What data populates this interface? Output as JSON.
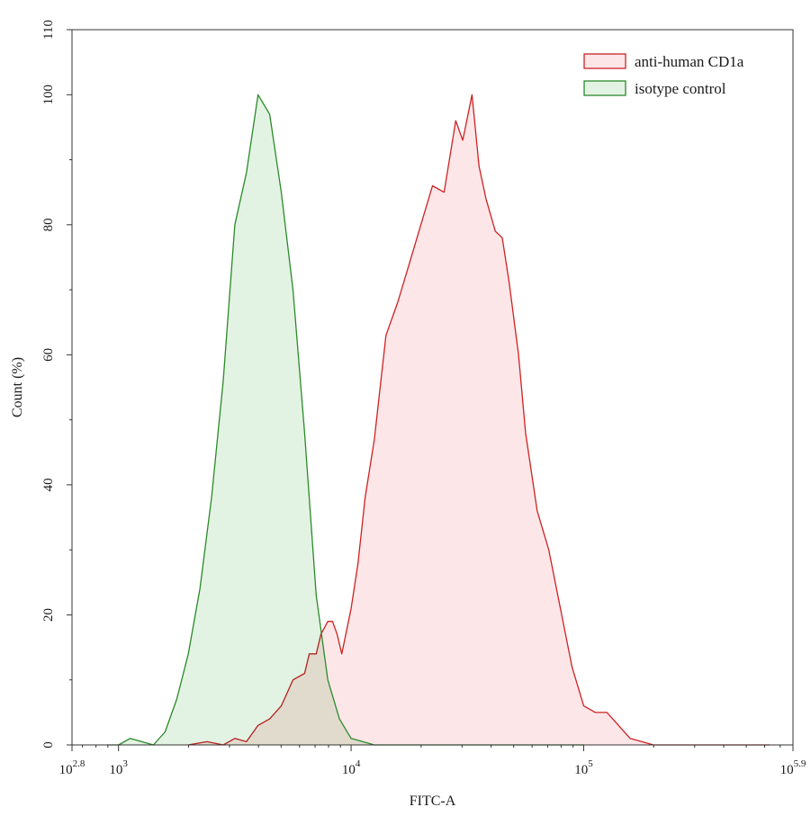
{
  "chart_data": {
    "type": "area",
    "xlabel": "FITC-A",
    "ylabel": "Count  (%)",
    "x_scale": "log10",
    "xlim": [
      2.8,
      5.9
    ],
    "ylim": [
      0,
      110
    ],
    "x_ticks": [
      {
        "base": "10",
        "exp": "2.8",
        "log": 2.8
      },
      {
        "base": "10",
        "exp": "3",
        "log": 3
      },
      {
        "base": "10",
        "exp": "4",
        "log": 4
      },
      {
        "base": "10",
        "exp": "5",
        "log": 5
      },
      {
        "base": "10",
        "exp": "5.9",
        "log": 5.9
      }
    ],
    "y_ticks": [
      "0",
      "20",
      "40",
      "60",
      "80",
      "100",
      "110"
    ],
    "legend_position": "top-right",
    "grid": false,
    "series": [
      {
        "name": "anti-human CD1a",
        "color": "#cc2222",
        "fill": "#fde6e8",
        "x": [
          3.3,
          3.38,
          3.45,
          3.5,
          3.55,
          3.6,
          3.65,
          3.7,
          3.75,
          3.8,
          3.82,
          3.85,
          3.87,
          3.9,
          3.92,
          3.94,
          3.96,
          4.0,
          4.03,
          4.06,
          4.1,
          4.15,
          4.2,
          4.25,
          4.3,
          4.35,
          4.4,
          4.45,
          4.48,
          4.52,
          4.55,
          4.58,
          4.62,
          4.65,
          4.68,
          4.72,
          4.75,
          4.8,
          4.85,
          4.9,
          4.95,
          5.0,
          5.05,
          5.1,
          5.15,
          5.2,
          5.25,
          5.3,
          5.35,
          5.5,
          5.8
        ],
        "y": [
          0,
          0.5,
          0,
          1,
          0.5,
          3,
          4,
          6,
          10,
          11,
          14,
          14,
          17,
          19,
          19,
          17,
          14,
          21,
          28,
          38,
          47,
          63,
          68,
          74,
          80,
          86,
          85,
          96,
          93,
          100,
          89,
          84,
          79,
          78,
          71,
          60,
          48,
          36,
          30,
          21,
          12,
          6,
          5,
          5,
          3,
          1,
          0.5,
          0,
          0,
          0,
          0
        ]
      },
      {
        "name": "isotype control",
        "color": "#2a8a2a",
        "fill": "#e3f3e3",
        "x": [
          2.95,
          3.0,
          3.05,
          3.1,
          3.15,
          3.2,
          3.25,
          3.3,
          3.35,
          3.4,
          3.45,
          3.5,
          3.55,
          3.6,
          3.65,
          3.7,
          3.75,
          3.8,
          3.85,
          3.9,
          3.95,
          4.0,
          4.05,
          4.1,
          4.2,
          4.3,
          4.5,
          5.0
        ],
        "y": [
          0,
          0,
          1,
          0.5,
          0,
          2,
          7,
          14,
          24,
          38,
          56,
          80,
          88,
          100,
          97,
          85,
          70,
          48,
          23,
          10,
          4,
          1,
          0.5,
          0,
          0,
          0,
          0,
          0
        ]
      }
    ]
  }
}
